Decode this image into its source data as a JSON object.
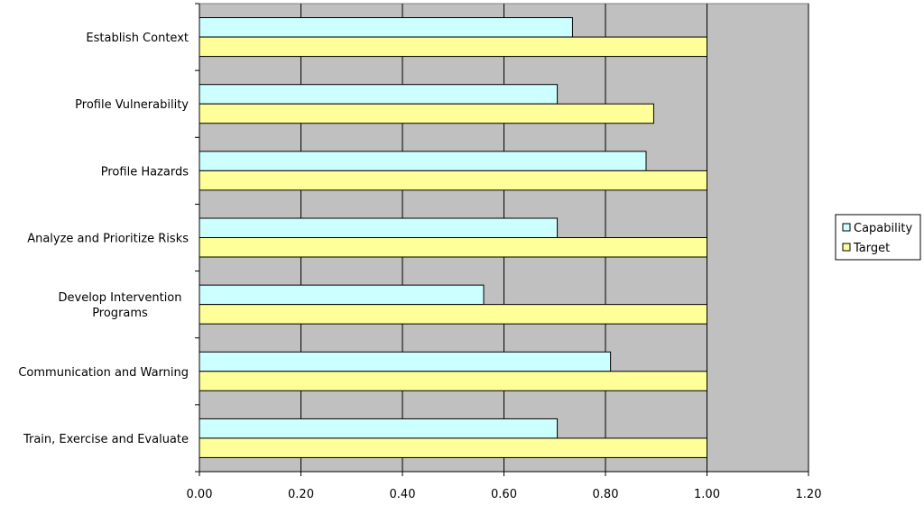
{
  "chart_data": {
    "type": "bar",
    "orientation": "horizontal",
    "categories": [
      "Establish Context",
      "Profile Vulnerability",
      "Profile Hazards",
      "Analyze and Prioritize Risks",
      "Develop Intervention Programs",
      "Communication and Warning",
      "Train, Exercise and Evaluate"
    ],
    "category_lines": [
      [
        "Establish Context"
      ],
      [
        "Profile Vulnerability"
      ],
      [
        "Profile Hazards"
      ],
      [
        "Analyze and Prioritize Risks"
      ],
      [
        "Develop Intervention",
        "Programs"
      ],
      [
        "Communication and Warning"
      ],
      [
        "Train, Exercise and Evaluate"
      ]
    ],
    "series": [
      {
        "name": "Capability",
        "color": "#ccffff",
        "values": [
          0.735,
          0.705,
          0.88,
          0.705,
          0.56,
          0.81,
          0.705
        ]
      },
      {
        "name": "Target",
        "color": "#ffff99",
        "values": [
          1.0,
          0.895,
          1.0,
          1.0,
          1.0,
          1.0,
          1.0
        ]
      }
    ],
    "xlim": [
      0,
      1.2
    ],
    "xticks": [
      "0.00",
      "0.20",
      "0.40",
      "0.60",
      "0.80",
      "1.00",
      "1.20"
    ],
    "xtick_values": [
      0,
      0.2,
      0.4,
      0.6,
      0.8,
      1.0,
      1.2
    ],
    "grid": true,
    "plot_background": "#c0c0c0",
    "legend_position": "right",
    "title": "",
    "xlabel": "",
    "ylabel": ""
  }
}
